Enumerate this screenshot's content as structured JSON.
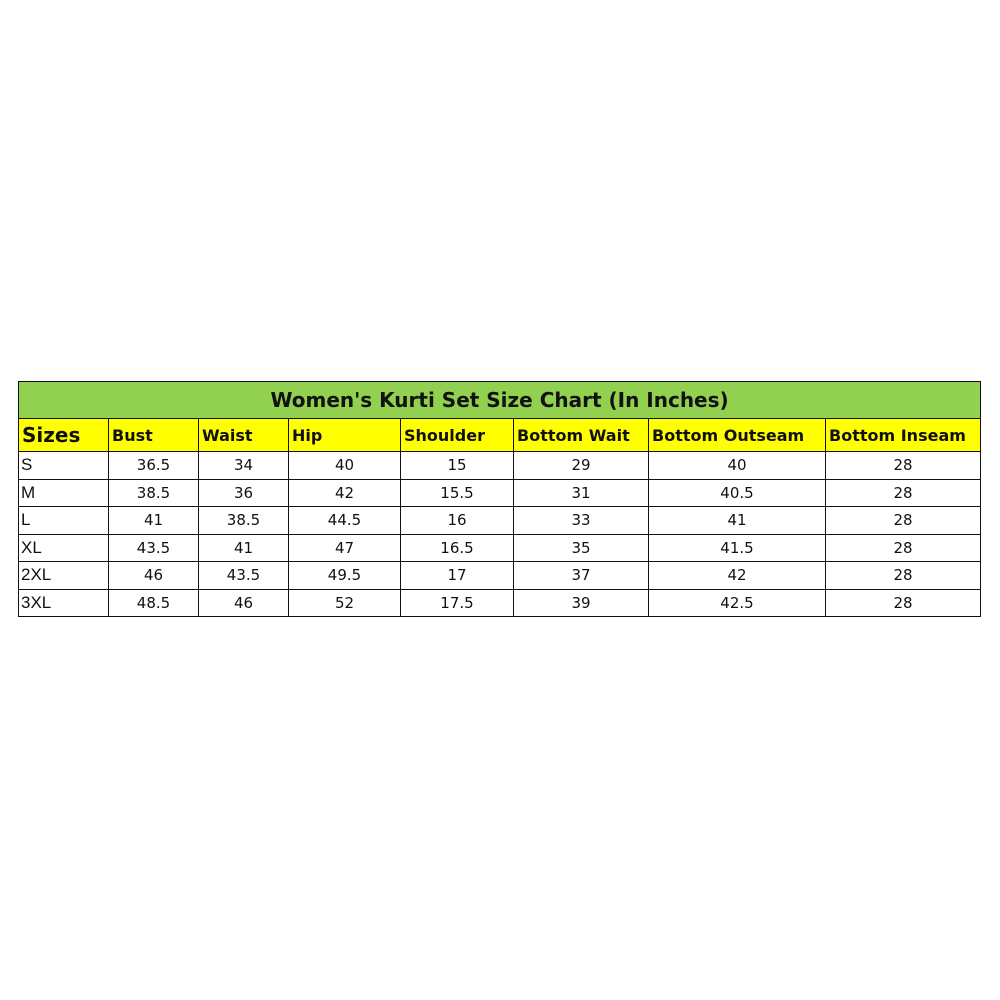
{
  "title": "Women's Kurti Set Size Chart (In Inches)",
  "colors": {
    "title_bg": "#92d050",
    "header_bg": "#ffff00"
  },
  "headers": [
    "Sizes",
    "Bust",
    "Waist",
    "Hip",
    "Shoulder",
    "Bottom Wait",
    "Bottom Outseam",
    "Bottom Inseam"
  ],
  "rows": [
    [
      "S",
      "36.5",
      "34",
      "40",
      "15",
      "29",
      "40",
      "28"
    ],
    [
      "M",
      "38.5",
      "36",
      "42",
      "15.5",
      "31",
      "40.5",
      "28"
    ],
    [
      "L",
      "41",
      "38.5",
      "44.5",
      "16",
      "33",
      "41",
      "28"
    ],
    [
      "XL",
      "43.5",
      "41",
      "47",
      "16.5",
      "35",
      "41.5",
      "28"
    ],
    [
      "2XL",
      "46",
      "43.5",
      "49.5",
      "17",
      "37",
      "42",
      "28"
    ],
    [
      "3XL",
      "48.5",
      "46",
      "52",
      "17.5",
      "39",
      "42.5",
      "28"
    ]
  ]
}
